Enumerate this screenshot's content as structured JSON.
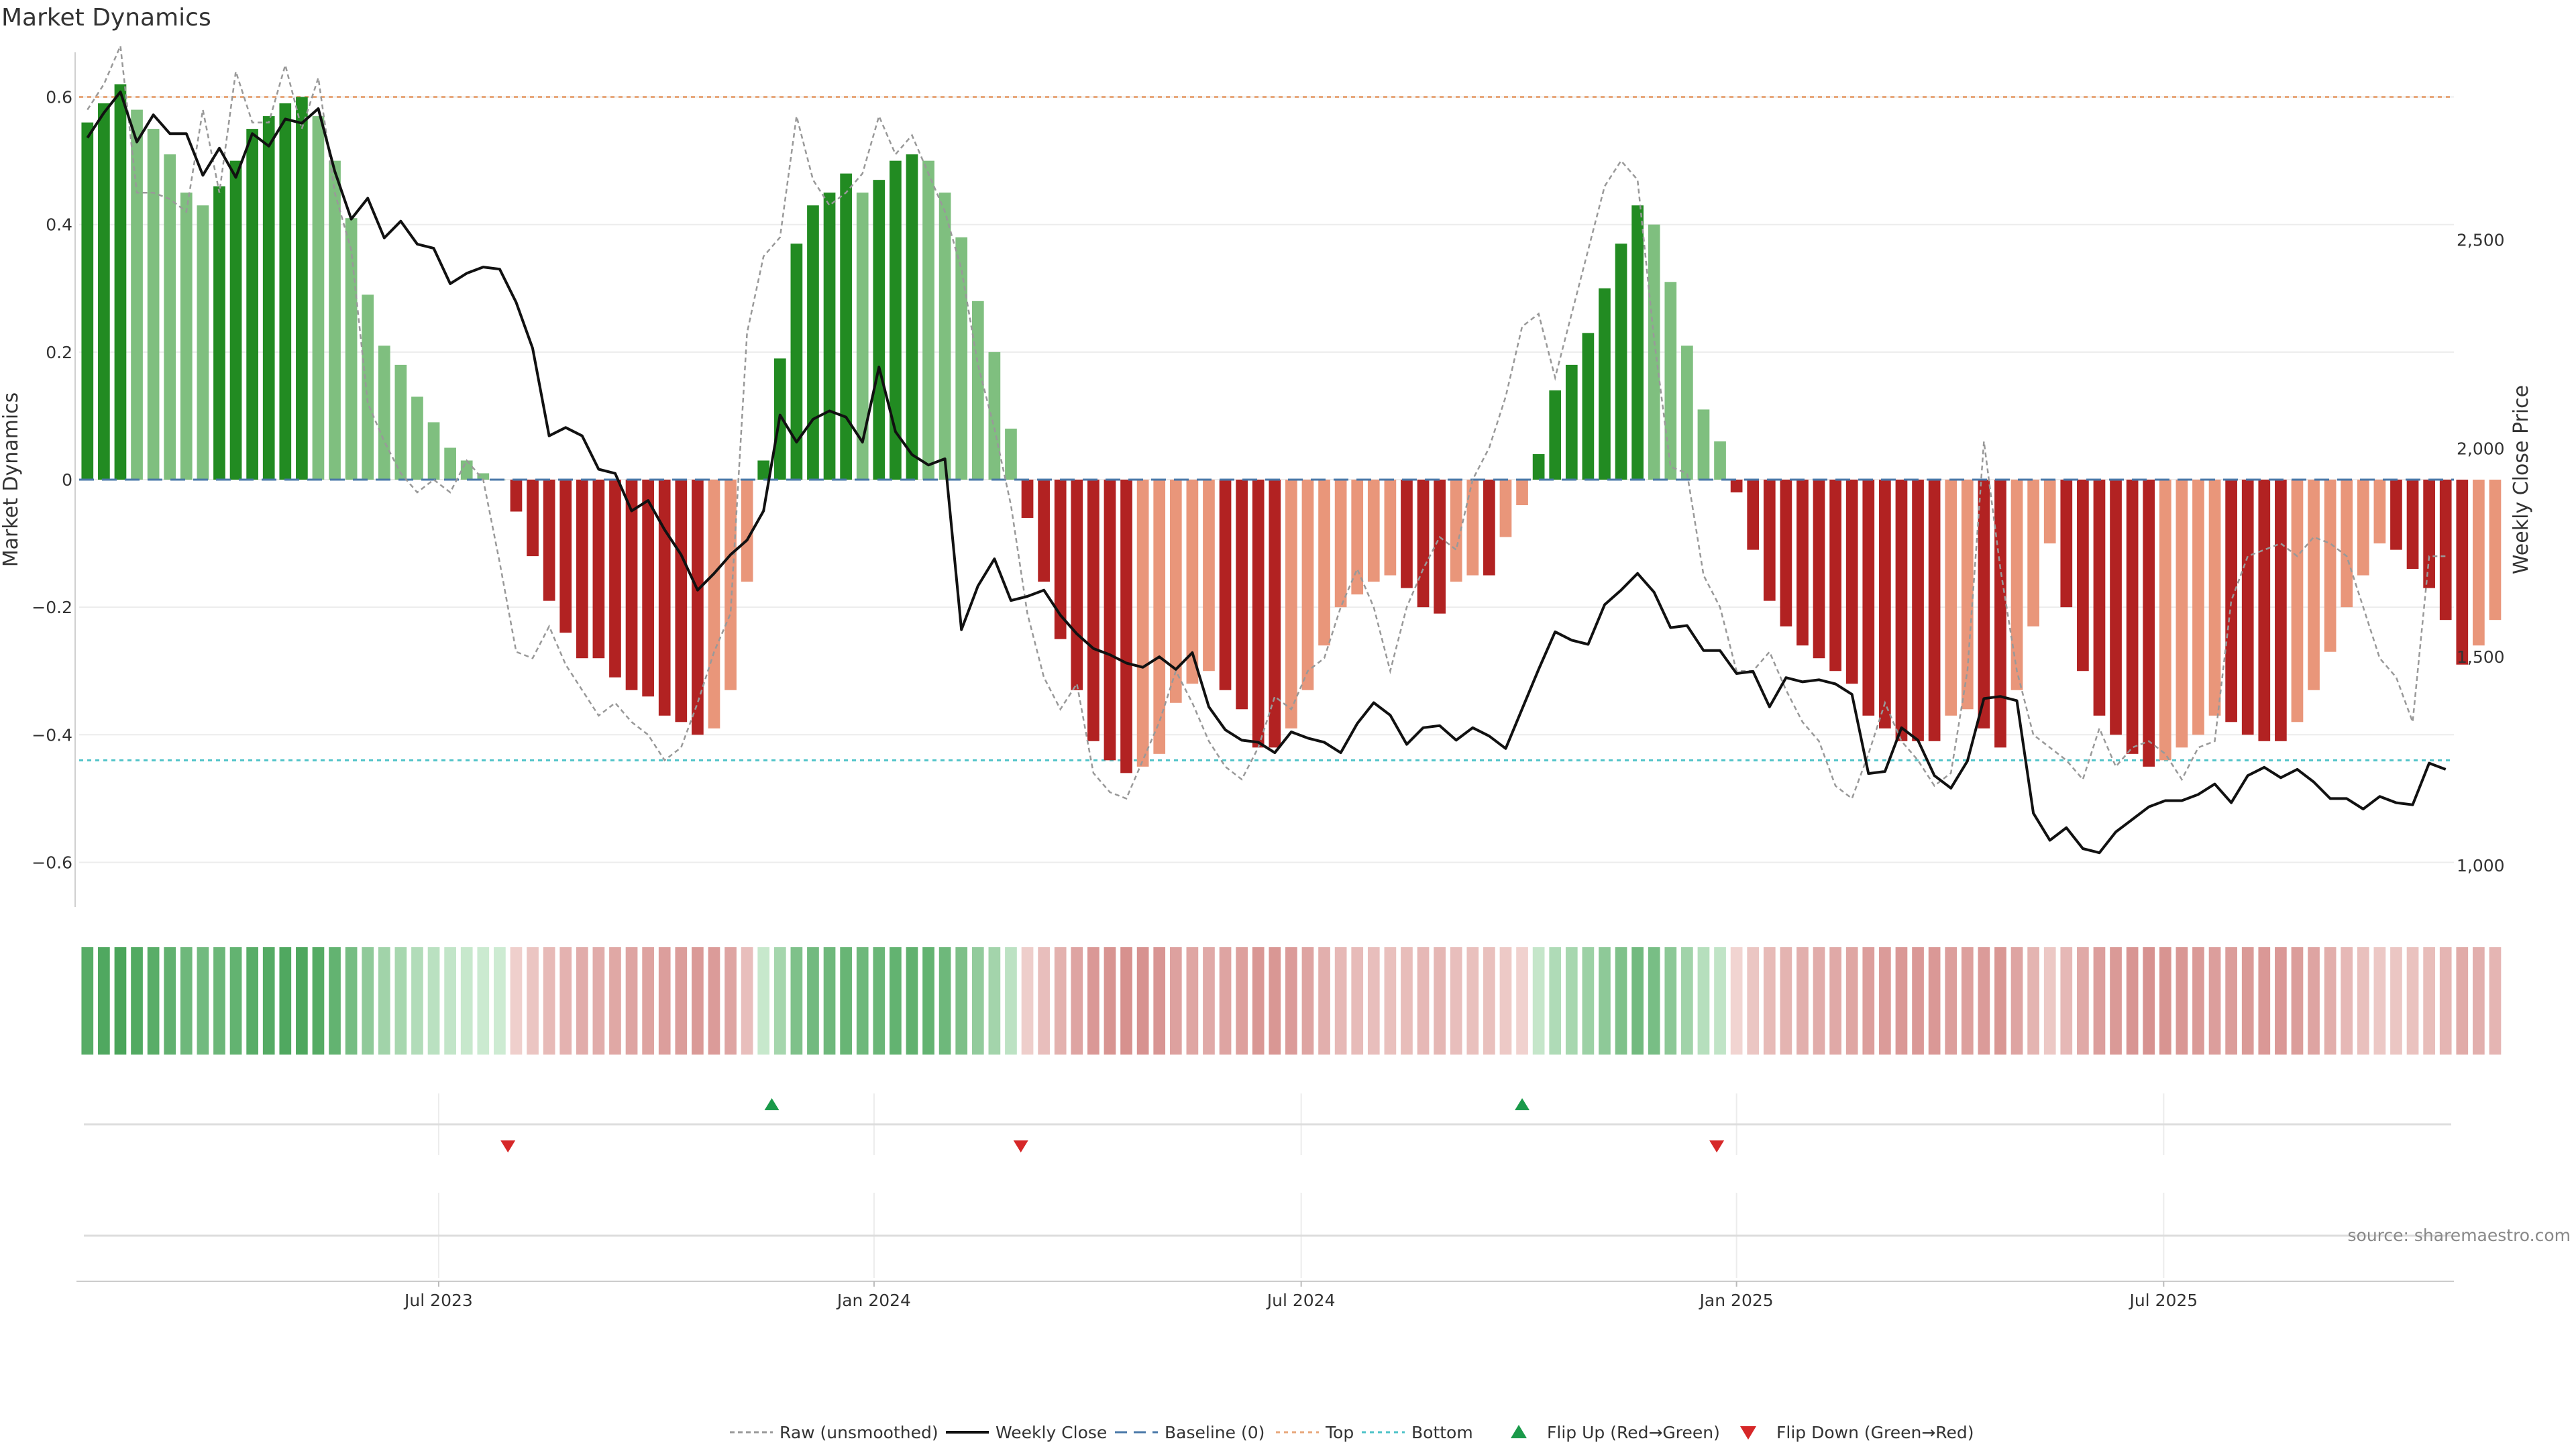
{
  "chart_data": {
    "type": "bar",
    "title": "Market Dynamics",
    "ylabel_left": "Market Dynamics",
    "ylabel_right": "Weekly Close Price",
    "source": "source: sharemaestro.com",
    "ylim_left": [
      -0.67,
      0.67
    ],
    "yticks_left": [
      0.6,
      0.4,
      0.2,
      0,
      -0.2,
      -0.4,
      -0.6
    ],
    "ytick_labels_left": [
      "0.6",
      "0.4",
      "0.2",
      "0",
      "−0.2",
      "−0.4",
      "−0.6"
    ],
    "ylim_right": [
      900,
      2950
    ],
    "yticks_right": [
      2500,
      2000,
      1500,
      1000
    ],
    "ytick_labels_right": [
      "2,500",
      "2,000",
      "1,500",
      "1,000"
    ],
    "x_range_weeks": [
      0,
      144
    ],
    "xticks": [
      {
        "label": "Jul 2023",
        "week": 21.8
      },
      {
        "label": "Jan 2024",
        "week": 48.2
      },
      {
        "label": "Jul 2024",
        "week": 74.1
      },
      {
        "label": "Jan 2025",
        "week": 100.5
      },
      {
        "label": "Jul 2025",
        "week": 126.4
      }
    ],
    "reference_lines": {
      "baseline": 0,
      "top": 0.6,
      "bottom": -0.44
    },
    "colors": {
      "green_strong": "#228b22",
      "green_light": "#7fbf7f",
      "red_strong": "#b22222",
      "red_light": "#e9967a",
      "close": "#111111",
      "raw": "#999999",
      "baseline": "#4a78a8",
      "top": "#e8a87c",
      "bottom": "#4fc3c8",
      "flip_up": "#1a9a4a",
      "flip_down": "#d62728"
    },
    "series": [
      {
        "name": "Smoothed (bars)",
        "values": [
          0.56,
          0.59,
          0.62,
          0.58,
          0.55,
          0.51,
          0.45,
          0.43,
          0.46,
          0.5,
          0.55,
          0.57,
          0.59,
          0.6,
          0.57,
          0.5,
          0.41,
          0.29,
          0.21,
          0.18,
          0.13,
          0.09,
          0.05,
          0.03,
          0.01,
          0,
          -0.05,
          -0.12,
          -0.19,
          -0.24,
          -0.28,
          -0.28,
          -0.31,
          -0.33,
          -0.34,
          -0.37,
          -0.38,
          -0.4,
          -0.39,
          -0.33,
          -0.16,
          0.03,
          0.19,
          0.37,
          0.43,
          0.45,
          0.48,
          0.45,
          0.47,
          0.5,
          0.51,
          0.5,
          0.45,
          0.38,
          0.28,
          0.2,
          0.08,
          -0.06,
          -0.16,
          -0.25,
          -0.33,
          -0.41,
          -0.44,
          -0.46,
          -0.45,
          -0.43,
          -0.35,
          -0.32,
          -0.3,
          -0.33,
          -0.36,
          -0.42,
          -0.42,
          -0.39,
          -0.33,
          -0.26,
          -0.2,
          -0.18,
          -0.16,
          -0.15,
          -0.17,
          -0.2,
          -0.21,
          -0.16,
          -0.15,
          -0.15,
          -0.09,
          -0.04,
          0.04,
          0.14,
          0.18,
          0.23,
          0.3,
          0.37,
          0.43,
          0.4,
          0.31,
          0.21,
          0.11,
          0.06,
          -0.02,
          -0.11,
          -0.19,
          -0.23,
          -0.26,
          -0.28,
          -0.3,
          -0.32,
          -0.37,
          -0.39,
          -0.41,
          -0.41,
          -0.41,
          -0.37,
          -0.36,
          -0.39,
          -0.42,
          -0.33,
          -0.23,
          -0.1,
          -0.2,
          -0.3,
          -0.37,
          -0.4,
          -0.43,
          -0.45,
          -0.44,
          -0.42,
          -0.4,
          -0.37,
          -0.38,
          -0.4,
          -0.41,
          -0.41,
          -0.38,
          -0.33,
          -0.27,
          -0.2,
          -0.15,
          -0.1,
          -0.11,
          -0.14,
          -0.17,
          -0.22,
          -0.29,
          -0.26,
          -0.22
        ]
      },
      {
        "name": "Raw (unsmoothed)",
        "values": [
          0.58,
          0.62,
          0.68,
          0.45,
          0.45,
          0.44,
          0.42,
          0.58,
          0.45,
          0.64,
          0.56,
          0.56,
          0.65,
          0.55,
          0.63,
          0.45,
          0.36,
          0.12,
          0.06,
          0.01,
          -0.02,
          0,
          -0.02,
          0.03,
          0.0,
          -0.13,
          -0.27,
          -0.28,
          -0.23,
          -0.29,
          -0.33,
          -0.37,
          -0.35,
          -0.38,
          -0.4,
          -0.44,
          -0.42,
          -0.35,
          -0.27,
          -0.21,
          0.23,
          0.35,
          0.38,
          0.57,
          0.47,
          0.43,
          0.45,
          0.48,
          0.57,
          0.51,
          0.54,
          0.48,
          0.42,
          0.33,
          0.18,
          0.08,
          -0.04,
          -0.21,
          -0.31,
          -0.36,
          -0.32,
          -0.46,
          -0.49,
          -0.5,
          -0.44,
          -0.38,
          -0.3,
          -0.35,
          -0.41,
          -0.45,
          -0.47,
          -0.42,
          -0.34,
          -0.36,
          -0.3,
          -0.28,
          -0.2,
          -0.14,
          -0.2,
          -0.3,
          -0.2,
          -0.14,
          -0.09,
          -0.11,
          0.0,
          0.05,
          0.13,
          0.24,
          0.26,
          0.16,
          0.26,
          0.36,
          0.46,
          0.5,
          0.47,
          0.22,
          0.02,
          0.01,
          -0.15,
          -0.2,
          -0.3,
          -0.3,
          -0.27,
          -0.33,
          -0.38,
          -0.41,
          -0.48,
          -0.5,
          -0.43,
          -0.35,
          -0.41,
          -0.44,
          -0.48,
          -0.46,
          -0.3,
          0.06,
          -0.14,
          -0.3,
          -0.4,
          -0.42,
          -0.44,
          -0.47,
          -0.39,
          -0.45,
          -0.42,
          -0.41,
          -0.43,
          -0.47,
          -0.42,
          -0.41,
          -0.19,
          -0.12,
          -0.11,
          -0.1,
          -0.12,
          -0.09,
          -0.1,
          -0.12,
          -0.2,
          -0.28,
          -0.31,
          -0.38,
          -0.12,
          -0.12
        ]
      },
      {
        "name": "Weekly Close",
        "values": [
          2745,
          2805,
          2855,
          2735,
          2800,
          2755,
          2755,
          2655,
          2720,
          2650,
          2755,
          2725,
          2790,
          2780,
          2815,
          2665,
          2550,
          2600,
          2505,
          2545,
          2490,
          2480,
          2395,
          2420,
          2435,
          2430,
          2350,
          2240,
          2030,
          2050,
          2030,
          1950,
          1940,
          1850,
          1875,
          1805,
          1745,
          1660,
          1700,
          1745,
          1780,
          1850,
          2080,
          2015,
          2070,
          2090,
          2075,
          2015,
          2195,
          2040,
          1985,
          1960,
          1975,
          1565,
          1670,
          1735,
          1635,
          1645,
          1660,
          1600,
          1555,
          1520,
          1505,
          1485,
          1475,
          1500,
          1470,
          1510,
          1380,
          1325,
          1300,
          1295,
          1270,
          1320,
          1305,
          1295,
          1270,
          1340,
          1390,
          1360,
          1290,
          1330,
          1335,
          1300,
          1330,
          1310,
          1280,
          1375,
          1470,
          1560,
          1540,
          1530,
          1625,
          1660,
          1700,
          1655,
          1570,
          1575,
          1515,
          1515,
          1460,
          1465,
          1380,
          1450,
          1440,
          1445,
          1435,
          1410,
          1220,
          1225,
          1330,
          1300,
          1215,
          1185,
          1250,
          1400,
          1405,
          1395,
          1125,
          1060,
          1090,
          1040,
          1030,
          1080,
          1110,
          1140,
          1155,
          1155,
          1170,
          1195,
          1150,
          1215,
          1235,
          1210,
          1230,
          1200,
          1160,
          1160,
          1135,
          1165,
          1150,
          1145,
          1245,
          1230
        ]
      },
      {
        "name": "Heat strip",
        "values": [
          0.56,
          0.59,
          0.62,
          0.58,
          0.55,
          0.51,
          0.45,
          0.43,
          0.46,
          0.5,
          0.55,
          0.57,
          0.59,
          0.6,
          0.57,
          0.5,
          0.41,
          0.29,
          0.21,
          0.18,
          0.13,
          0.09,
          0.05,
          0.03,
          0.01,
          0,
          -0.05,
          -0.12,
          -0.19,
          -0.24,
          -0.28,
          -0.28,
          -0.31,
          -0.33,
          -0.34,
          -0.37,
          -0.38,
          -0.4,
          -0.39,
          -0.33,
          -0.16,
          0.03,
          0.19,
          0.37,
          0.43,
          0.45,
          0.48,
          0.45,
          0.47,
          0.5,
          0.51,
          0.5,
          0.45,
          0.38,
          0.28,
          0.2,
          0.08,
          -0.06,
          -0.16,
          -0.25,
          -0.33,
          -0.41,
          -0.44,
          -0.46,
          -0.45,
          -0.43,
          -0.35,
          -0.32,
          -0.3,
          -0.33,
          -0.36,
          -0.42,
          -0.42,
          -0.39,
          -0.33,
          -0.26,
          -0.2,
          -0.18,
          -0.16,
          -0.15,
          -0.17,
          -0.2,
          -0.21,
          -0.16,
          -0.15,
          -0.15,
          -0.09,
          -0.04,
          0.04,
          0.14,
          0.18,
          0.23,
          0.3,
          0.37,
          0.43,
          0.4,
          0.31,
          0.21,
          0.11,
          0.06,
          -0.02,
          -0.11,
          -0.19,
          -0.23,
          -0.26,
          -0.28,
          -0.3,
          -0.32,
          -0.37,
          -0.39,
          -0.41,
          -0.41,
          -0.41,
          -0.37,
          -0.36,
          -0.39,
          -0.42,
          -0.33,
          -0.23,
          -0.1,
          -0.2,
          -0.3,
          -0.37,
          -0.4,
          -0.43,
          -0.45,
          -0.44,
          -0.42,
          -0.4,
          -0.37,
          -0.38,
          -0.4,
          -0.41,
          -0.41,
          -0.38,
          -0.33,
          -0.27,
          -0.2,
          -0.15,
          -0.1,
          -0.11,
          -0.14,
          -0.17,
          -0.22,
          -0.29,
          -0.26,
          -0.22
        ]
      }
    ],
    "flip_up_weeks": [
      42,
      87.5
    ],
    "flip_down_weeks": [
      26,
      57.1,
      99.3
    ],
    "legend": [
      {
        "label": "Raw (unsmoothed)",
        "kind": "raw"
      },
      {
        "label": "Weekly Close",
        "kind": "close"
      },
      {
        "label": "Baseline (0)",
        "kind": "baseline"
      },
      {
        "label": "Top",
        "kind": "top"
      },
      {
        "label": "Bottom",
        "kind": "bottom"
      },
      {
        "label": "Flip Up (Red→Green)",
        "kind": "flip_up"
      },
      {
        "label": "Flip Down (Green→Red)",
        "kind": "flip_down"
      }
    ]
  }
}
